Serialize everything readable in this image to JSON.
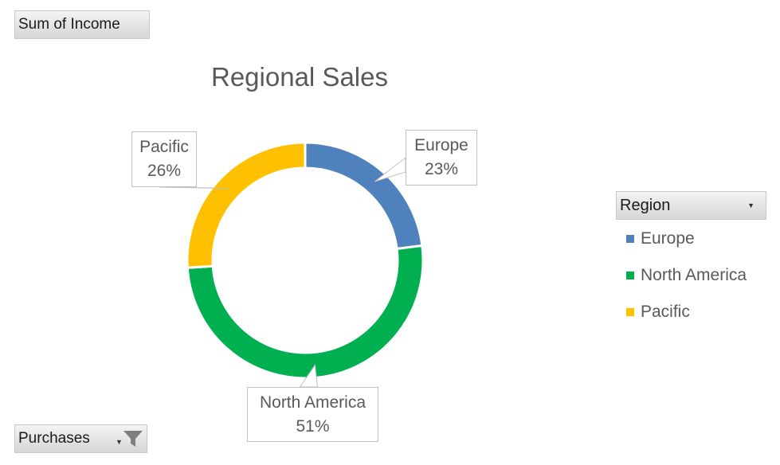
{
  "value_field_button": {
    "label": "Sum of Income"
  },
  "filter_field_button": {
    "label": "Purchases"
  },
  "legend": {
    "header": "Region"
  },
  "chart_data": {
    "type": "pie",
    "style": "doughnut",
    "title": "Regional Sales",
    "series": [
      {
        "name": "Europe",
        "value": 23,
        "label": "23%",
        "color": "#4f81bd"
      },
      {
        "name": "North America",
        "value": 51,
        "label": "51%",
        "color": "#00b050"
      },
      {
        "name": "Pacific",
        "value": 26,
        "label": "26%",
        "color": "#ffc000"
      }
    ],
    "legend_position": "right"
  }
}
